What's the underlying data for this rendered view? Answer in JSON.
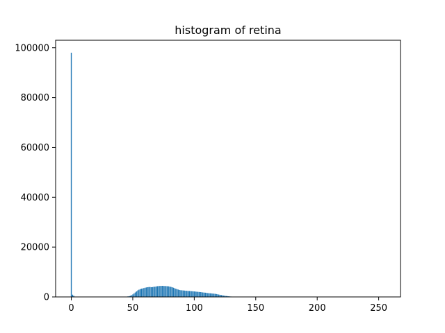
{
  "chart_data": {
    "type": "bar",
    "title": "histogram of retina",
    "xlabel": "",
    "ylabel": "",
    "xlim": [
      -12.75,
      267.75
    ],
    "ylim": [
      0,
      103000
    ],
    "xticks": [
      0,
      50,
      100,
      150,
      200,
      250
    ],
    "yticks": [
      0,
      20000,
      40000,
      60000,
      80000,
      100000
    ],
    "grid": false,
    "bar_color": "#1f77b4",
    "x": [
      0,
      1,
      2,
      45,
      46,
      47,
      48,
      49,
      50,
      51,
      52,
      53,
      54,
      55,
      56,
      57,
      58,
      59,
      60,
      61,
      62,
      63,
      64,
      65,
      66,
      67,
      68,
      69,
      70,
      71,
      72,
      73,
      74,
      75,
      76,
      77,
      78,
      79,
      80,
      81,
      82,
      83,
      84,
      85,
      86,
      87,
      88,
      89,
      90,
      91,
      92,
      93,
      94,
      95,
      96,
      97,
      98,
      99,
      100,
      101,
      102,
      103,
      104,
      105,
      106,
      107,
      108,
      109,
      110,
      111,
      112,
      113,
      114,
      115,
      116,
      117,
      118,
      119,
      120,
      121,
      122,
      123,
      124,
      125,
      126,
      127,
      128,
      129,
      130,
      131,
      132,
      133,
      134,
      135,
      136,
      137,
      138,
      139,
      140,
      150,
      160,
      170,
      180,
      190,
      200,
      210,
      220,
      230,
      240,
      250,
      255
    ],
    "values": [
      98000,
      900,
      500,
      100,
      200,
      300,
      450,
      700,
      1000,
      1400,
      1800,
      2200,
      2600,
      2900,
      3100,
      3300,
      3400,
      3550,
      3700,
      3800,
      3900,
      3950,
      4000,
      3900,
      3950,
      4050,
      4100,
      4200,
      4300,
      4350,
      4400,
      4420,
      4450,
      4400,
      4380,
      4350,
      4300,
      4250,
      4150,
      4050,
      3900,
      3700,
      3500,
      3300,
      3100,
      2950,
      2800,
      2700,
      2650,
      2600,
      2550,
      2500,
      2450,
      2400,
      2380,
      2350,
      2300,
      2250,
      2200,
      2150,
      2100,
      2050,
      2000,
      1950,
      1900,
      1800,
      1750,
      1700,
      1650,
      1550,
      1500,
      1450,
      1400,
      1350,
      1300,
      1250,
      1150,
      1050,
      950,
      850,
      750,
      650,
      550,
      450,
      380,
      320,
      260,
      200,
      160,
      120,
      90,
      60,
      40,
      30,
      20,
      15,
      10,
      8,
      5,
      3,
      2,
      2,
      2,
      2,
      2,
      2,
      2,
      2,
      2,
      2,
      2
    ]
  }
}
